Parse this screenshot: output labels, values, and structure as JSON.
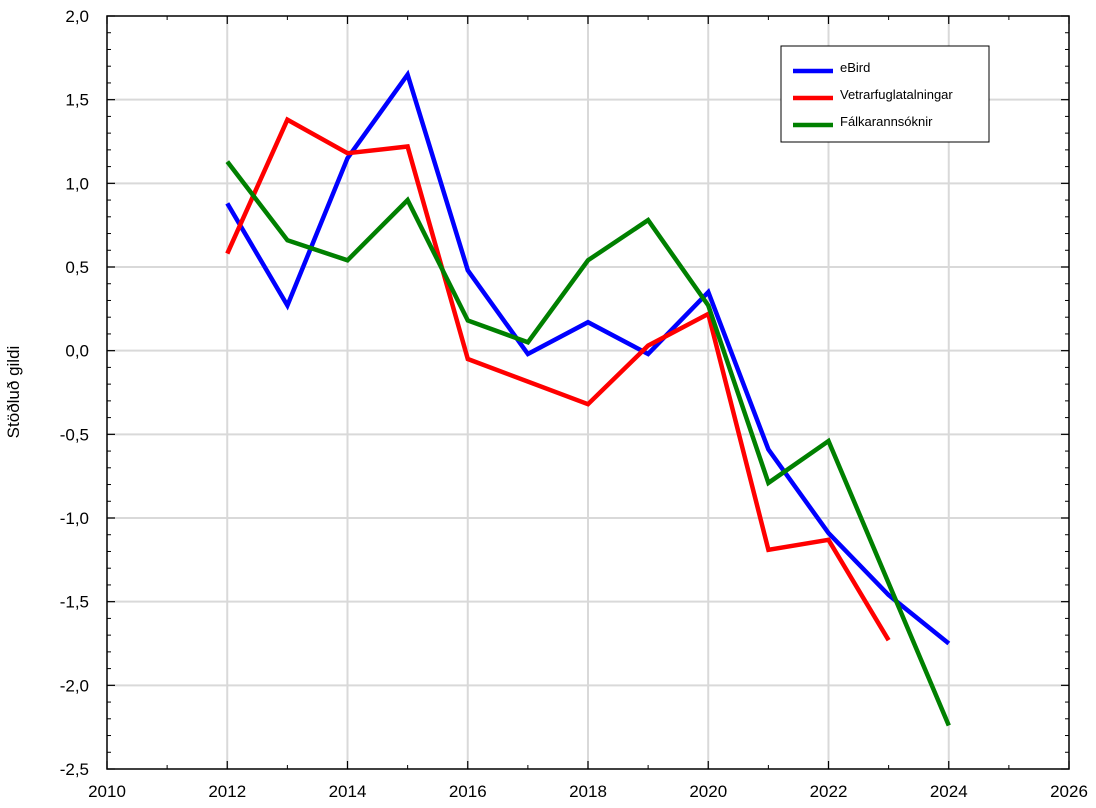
{
  "chart_data": {
    "type": "line",
    "title": "",
    "xlabel": "",
    "ylabel": "Stöðluð gildi",
    "xlim": [
      2010,
      2026
    ],
    "ylim": [
      -2.5,
      2.0
    ],
    "xticks": [
      "2010",
      "2012",
      "2014",
      "2016",
      "2018",
      "2020",
      "2022",
      "2024",
      "2026"
    ],
    "yticks": [
      "2,0",
      "1,5",
      "1,0",
      "0,5",
      "0,0",
      "-0,5",
      "-1,0",
      "-1,5",
      "-2,0",
      "-2,5"
    ],
    "grid": true,
    "legend_position": "top-right",
    "series": [
      {
        "name": "eBird",
        "color": "#0000ff",
        "x": [
          2012,
          2013,
          2014,
          2015,
          2016,
          2017,
          2018,
          2019,
          2020,
          2021,
          2022,
          2023,
          2024
        ],
        "y": [
          0.88,
          0.27,
          1.15,
          1.65,
          0.48,
          -0.02,
          0.17,
          -0.02,
          0.35,
          -0.59,
          -1.09,
          -1.46,
          -1.75
        ]
      },
      {
        "name": "Vetrarfuglatalningar",
        "color": "#ff0000",
        "x": [
          2012,
          2013,
          2014,
          2015,
          2016,
          2018,
          2019,
          2020,
          2021,
          2022,
          2023
        ],
        "y": [
          0.58,
          1.38,
          1.18,
          1.22,
          -0.05,
          -0.32,
          0.03,
          0.22,
          -1.19,
          -1.13,
          -1.73
        ]
      },
      {
        "name": "Fálkarannsóknir",
        "color": "#008000",
        "x": [
          2012,
          2013,
          2014,
          2015,
          2016,
          2017,
          2018,
          2019,
          2020,
          2021,
          2022,
          2024
        ],
        "y": [
          1.13,
          0.66,
          0.54,
          0.9,
          0.18,
          0.05,
          0.54,
          0.78,
          0.27,
          -0.79,
          -0.54,
          -2.24
        ]
      }
    ]
  }
}
